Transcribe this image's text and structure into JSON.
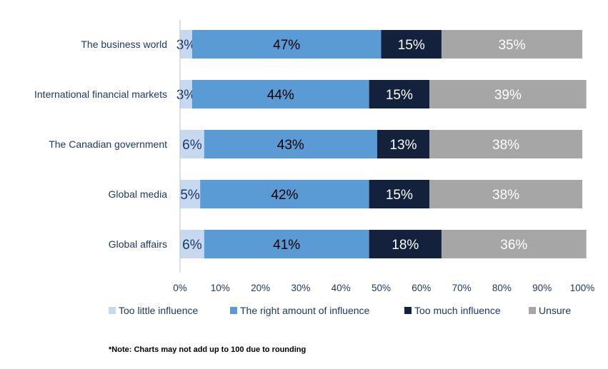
{
  "chart_data": {
    "type": "bar",
    "orientation": "horizontal",
    "stacked": true,
    "categories": [
      "The business world",
      "International financial markets",
      "The Canadian government",
      "Global media",
      "Global affairs"
    ],
    "series": [
      {
        "name": "Too little influence",
        "color": "#c6d9f1",
        "label_color": "#1f3864",
        "values": [
          3,
          3,
          6,
          5,
          6
        ]
      },
      {
        "name": "The right amount of influence",
        "color": "#5b9bd5",
        "label_color": "#000000",
        "values": [
          47,
          44,
          43,
          42,
          41
        ]
      },
      {
        "name": "Too much influence",
        "color": "#14213d",
        "label_color": "#ffffff",
        "values": [
          15,
          15,
          13,
          15,
          18
        ]
      },
      {
        "name": "Unsure",
        "color": "#a6a6a6",
        "label_color": "#ffffff",
        "values": [
          35,
          39,
          38,
          38,
          36
        ]
      }
    ],
    "xlim": [
      0,
      100
    ],
    "x_ticks": [
      0,
      10,
      20,
      30,
      40,
      50,
      60,
      70,
      80,
      90,
      100
    ],
    "tick_suffix": "%",
    "value_suffix": "%",
    "legend_position": "bottom",
    "grid": false
  },
  "note": "*Note: Charts may not add up to 100 due to rounding"
}
